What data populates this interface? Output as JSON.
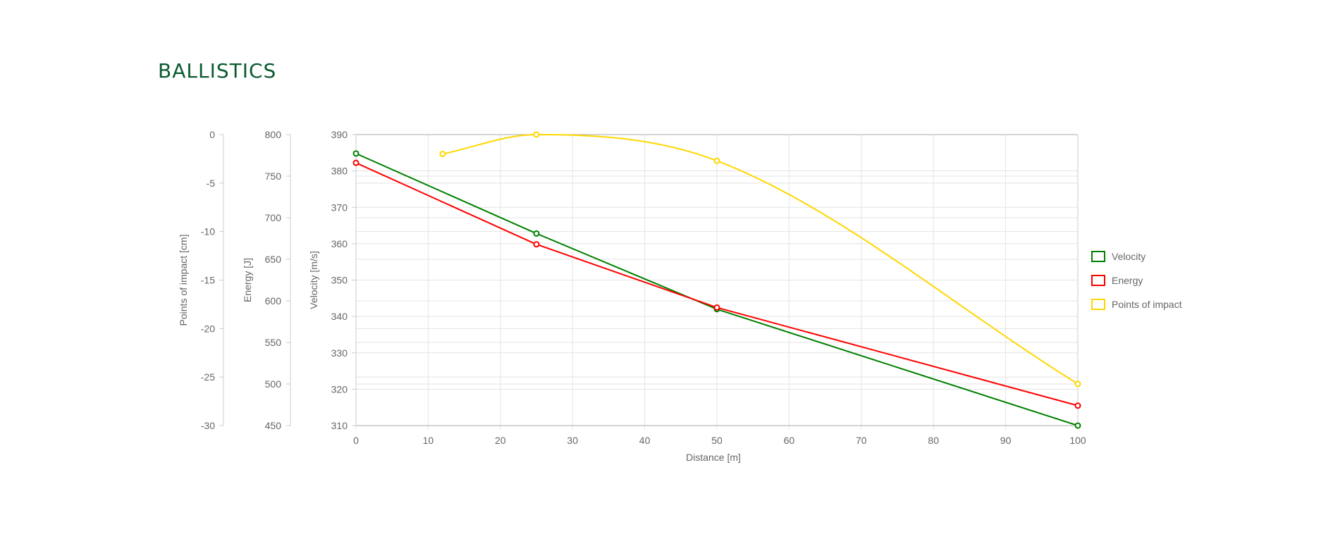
{
  "page": {
    "title": "BALLISTICS"
  },
  "chart_data": {
    "type": "line",
    "xlabel": "Distance [m]",
    "x_ticks": [
      0,
      10,
      20,
      30,
      40,
      50,
      60,
      70,
      80,
      90,
      100
    ],
    "xlim": [
      0,
      100
    ],
    "grid": true,
    "legend_position": "right",
    "axes": [
      {
        "id": "velocity",
        "label": "Velocity [m/s]",
        "ylim": [
          310,
          390
        ],
        "ticks": [
          310,
          320,
          330,
          340,
          350,
          360,
          370,
          380,
          390
        ]
      },
      {
        "id": "energy",
        "label": "Energy [J]",
        "ylim": [
          450,
          800
        ],
        "ticks": [
          450,
          500,
          550,
          600,
          650,
          700,
          750,
          800
        ]
      },
      {
        "id": "impact",
        "label": "Points of impact [cm]",
        "ylim": [
          -30,
          0
        ],
        "ticks": [
          -30,
          -25,
          -20,
          -15,
          -10,
          -5,
          0
        ]
      }
    ],
    "series": [
      {
        "name": "Velocity",
        "axis": "velocity",
        "color": "#008000",
        "curve": "straight",
        "x": [
          0,
          25,
          50,
          100
        ],
        "y": [
          384.8,
          362.8,
          342,
          310
        ]
      },
      {
        "name": "Energy",
        "axis": "energy",
        "color": "#ff0000",
        "curve": "straight",
        "x": [
          0,
          25,
          50,
          100
        ],
        "y": [
          766,
          668,
          592,
          474
        ]
      },
      {
        "name": "Points of impact",
        "axis": "impact",
        "color": "#ffd700",
        "curve": "smooth",
        "x": [
          12,
          25,
          50,
          100
        ],
        "y": [
          -2,
          0,
          -2.7,
          -25.7
        ]
      }
    ]
  }
}
